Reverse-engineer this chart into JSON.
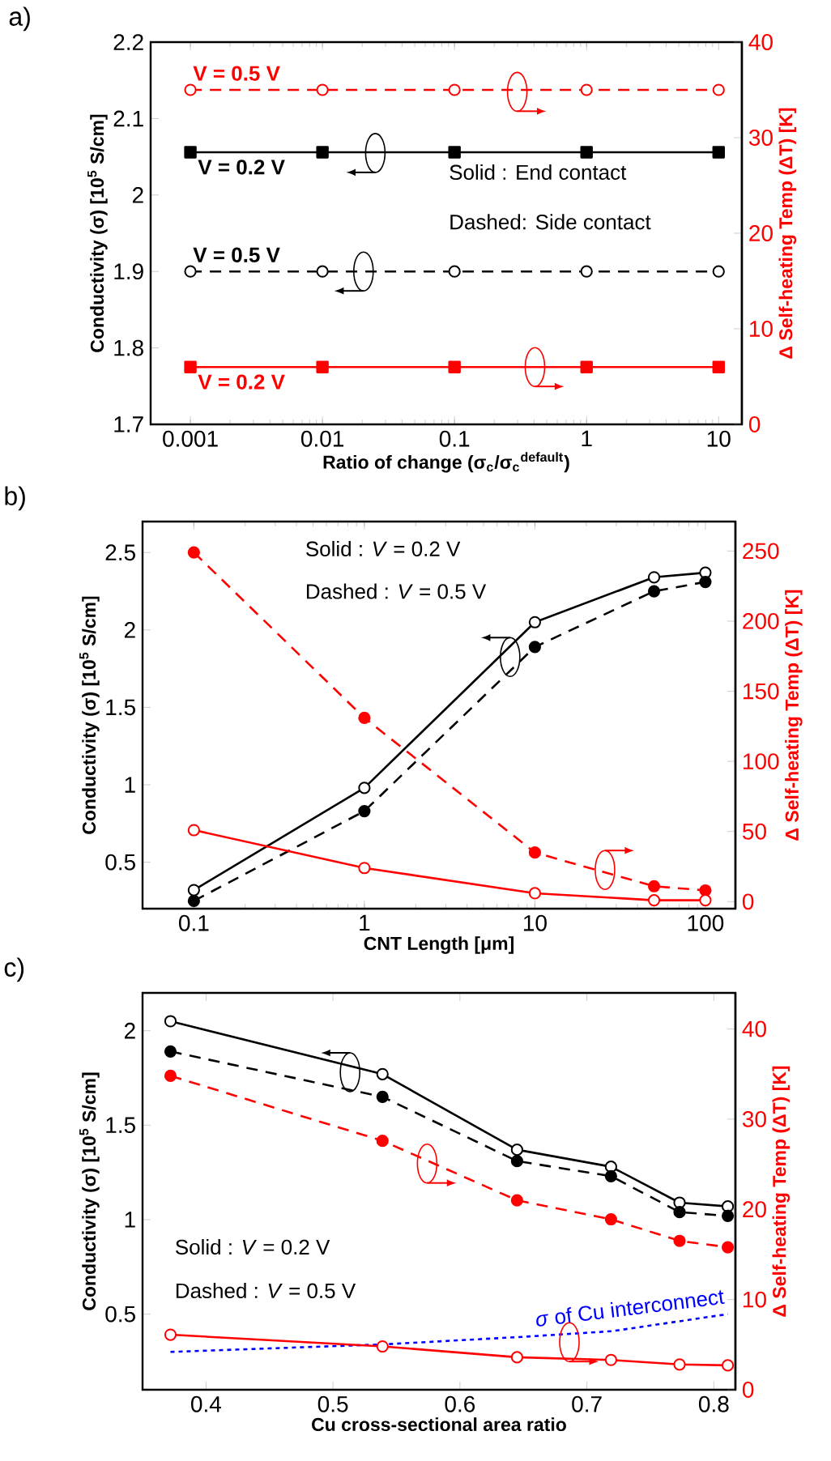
{
  "chart_data": [
    {
      "type": "line",
      "title": "a)",
      "xlabel": "Ratio of change (σ$_{c}$/σ$_{c}$$^{default}$)",
      "ylabel": "Conductivity (σ) [10$^{5}$ S/cm]",
      "y2label": "Δ Self-heating Temp (ΔT) [K]",
      "log": "x",
      "xlim": [
        0.0005,
        15
      ],
      "xticks": [
        0.001,
        0.01,
        0.1,
        1,
        10
      ],
      "ylim": [
        1.7,
        2.2
      ],
      "yticks": [
        1.7,
        1.8,
        1.9,
        2,
        2.1,
        2.2
      ],
      "y2lim": [
        0,
        40
      ],
      "y2ticks": [
        0,
        10,
        20,
        30,
        40
      ],
      "x": [
        0.001,
        0.01,
        0.1,
        1,
        10
      ],
      "annotations": [
        "Solid : End contact",
        "Dashed: Side contact"
      ],
      "series": [
        {
          "name": "V = 0.5 V",
          "color": "#ff0000",
          "axis": "y2",
          "line_style": "dashed",
          "marker": "circle",
          "values": [
            35,
            35,
            35,
            35,
            35
          ]
        },
        {
          "name": "V = 0.2 V",
          "color": "#000000",
          "axis": "y",
          "line_style": "solid",
          "marker": "square",
          "values": [
            2.056,
            2.056,
            2.056,
            2.056,
            2.056
          ]
        },
        {
          "name": "V = 0.5 V",
          "color": "#000000",
          "axis": "y",
          "line_style": "dashed",
          "marker": "circle",
          "values": [
            1.9,
            1.9,
            1.9,
            1.9,
            1.9
          ]
        },
        {
          "name": "V = 0.2 V",
          "color": "#ff0000",
          "axis": "y2",
          "line_style": "solid",
          "marker": "square",
          "values": [
            6,
            6,
            6,
            6,
            6
          ]
        }
      ]
    },
    {
      "type": "line",
      "title": "b)",
      "xlabel": "CNT Length [μm]",
      "ylabel": "Conductivity (σ) [10$^{5}$ S/cm]",
      "y2label": "Δ Self-heating Temp (ΔT) [K]",
      "log": "x",
      "xlim": [
        0.05,
        150
      ],
      "xticks": [
        0.1,
        1,
        10,
        100
      ],
      "ylim": [
        0.2,
        2.7
      ],
      "yticks": [
        0.5,
        1,
        1.5,
        2,
        2.5
      ],
      "y2lim": [
        -5,
        271
      ],
      "y2ticks": [
        0,
        50,
        100,
        150,
        200,
        250
      ],
      "x": [
        0.1,
        1,
        10,
        50,
        100
      ],
      "annotations": [
        "Solid : *V* = 0.2 V",
        "Dashed : *V* = 0.5 V"
      ],
      "series": [
        {
          "color": "#000000",
          "axis": "y",
          "line_style": "solid",
          "marker": "circle",
          "values": [
            0.32,
            0.98,
            2.05,
            2.34,
            2.37
          ]
        },
        {
          "color": "#000000",
          "axis": "y",
          "line_style": "dashed",
          "marker": "circle",
          "values": [
            0.25,
            0.83,
            1.89,
            2.25,
            2.31
          ]
        },
        {
          "color": "#ff0000",
          "axis": "y2",
          "line_style": "dashed",
          "marker": "circle",
          "values": [
            249,
            131,
            35,
            11,
            8
          ]
        },
        {
          "color": "#ff0000",
          "axis": "y2",
          "line_style": "solid",
          "marker": "circle",
          "values": [
            51,
            24,
            6,
            1,
            1
          ]
        }
      ]
    },
    {
      "type": "line",
      "title": "c)",
      "xlabel": "Cu cross-sectional area ratio",
      "ylabel": "Conductivity (σ) [10$^{5}$ S/cm]",
      "y2label": "Δ Self-heating Temp (ΔT) [K]",
      "xlim": [
        0.35,
        0.817
      ],
      "xticks": [
        0.4,
        0.5,
        0.6,
        0.7,
        0.8
      ],
      "ylim": [
        0.1,
        2.2
      ],
      "yticks": [
        0.5,
        1,
        1.5,
        2
      ],
      "y2lim": [
        0,
        44
      ],
      "y2ticks": [
        0,
        10,
        20,
        30,
        40
      ],
      "x": [
        0.372,
        0.539,
        0.645,
        0.719,
        0.773,
        0.811
      ],
      "annotations": [
        "Solid : *V* = 0.2 V",
        "Dashed : *V* = 0.5 V"
      ],
      "series": [
        {
          "color": "#000000",
          "axis": "y",
          "line_style": "solid",
          "marker": "circle",
          "values": [
            2.05,
            1.77,
            1.37,
            1.28,
            1.09,
            1.07
          ]
        },
        {
          "color": "#000000",
          "axis": "y",
          "line_style": "dashed",
          "marker": "circle",
          "values": [
            1.89,
            1.65,
            1.31,
            1.23,
            1.04,
            1.02
          ]
        },
        {
          "color": "#ff0000",
          "axis": "y2",
          "line_style": "dashed",
          "marker": "circle",
          "values": [
            34.8,
            27.6,
            21,
            18.9,
            16.5,
            15.8
          ]
        },
        {
          "color": "#ff0000",
          "axis": "y2",
          "line_style": "solid",
          "marker": "circle",
          "values": [
            6.1,
            4.8,
            3.6,
            3.3,
            2.8,
            2.7
          ]
        },
        {
          "name": "*σ* of Cu interconnect",
          "color": "#0000ff",
          "axis": "y",
          "line_style": "dotted",
          "marker": "none",
          "x": [
            0.372,
            0.54,
            0.65,
            0.72,
            0.811
          ],
          "values": [
            0.3,
            0.34,
            0.38,
            0.41,
            0.5
          ]
        }
      ]
    }
  ]
}
